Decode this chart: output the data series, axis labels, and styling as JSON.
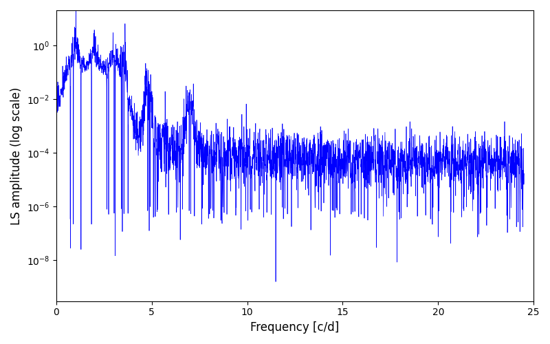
{
  "title": "",
  "xlabel": "Frequency [c/d]",
  "ylabel": "LS amplitude (log scale)",
  "xlim": [
    0,
    25
  ],
  "ylim": [
    3e-10,
    20
  ],
  "line_color": "#0000ff",
  "line_width": 0.5,
  "freq_min": 0.0,
  "freq_max": 24.5,
  "n_points": 3000,
  "seed": 17,
  "background_color": "#ffffff",
  "yticks": [
    1e-08,
    1e-06,
    0.0001,
    0.01,
    1.0
  ],
  "xticks": [
    0,
    5,
    10,
    15,
    20,
    25
  ]
}
